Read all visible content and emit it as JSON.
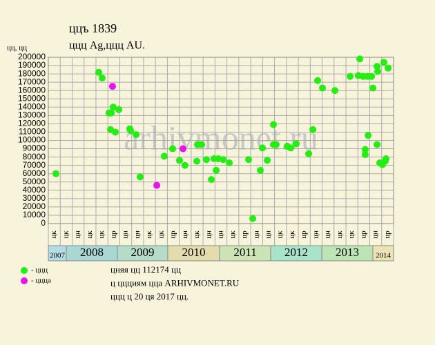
{
  "chart_data": {
    "type": "scatter",
    "title": "ццъ 1839",
    "subtitle": "ццц Ag,ццц AU.",
    "y_label": "цц, цц",
    "watermark": "arhivmonet.ru",
    "notes": [
      "цняя цц 112174 цц",
      "ц ццциям цца ARHIVMONET.RU",
      "ццц ц 20 ця 2017 цц."
    ],
    "xlim": [
      0,
      29
    ],
    "ylim": [
      0,
      200000
    ],
    "yticks": [
      0,
      10000,
      20000,
      30000,
      40000,
      50000,
      60000,
      70000,
      80000,
      90000,
      100000,
      110000,
      120000,
      130000,
      140000,
      150000,
      160000,
      170000,
      180000,
      190000,
      200000
    ],
    "grid": true,
    "categories": [
      "цк",
      "цк",
      "цн",
      "цк",
      "цк",
      "цр",
      "цн",
      "цн",
      "цк",
      "цк",
      "цр",
      "цн",
      "цк",
      "цн",
      "цн",
      "цк",
      "цр",
      "цн",
      "цн",
      "цк",
      "цк",
      "цр",
      "цн",
      "цн",
      "цк",
      "цк",
      "цр",
      "цн",
      "цр"
    ],
    "year_bands": [
      {
        "label": "2007",
        "from": 0,
        "to": 1.51,
        "color": "#b4dce4"
      },
      {
        "label": "2008",
        "from": 1.51,
        "to": 5.8,
        "color": "#a8d8d4"
      },
      {
        "label": "2009",
        "from": 5.8,
        "to": 10.03,
        "color": "#b4dcc8"
      },
      {
        "label": "2010",
        "from": 10.03,
        "to": 14.39,
        "color": "#e4dcac"
      },
      {
        "label": "2011",
        "from": 14.39,
        "to": 18.68,
        "color": "#cce4b4"
      },
      {
        "label": "2012",
        "from": 18.68,
        "to": 22.97,
        "color": "#a8e4cc"
      },
      {
        "label": "2013",
        "from": 22.97,
        "to": 27.26,
        "color": "#bce4b4"
      },
      {
        "label": "2014",
        "from": 27.26,
        "to": 29,
        "color": "#ece4b4"
      }
    ],
    "series": [
      {
        "name": "- ццц",
        "color": "#22ee11",
        "x": [
          0.64,
          4.23,
          4.52,
          5.1,
          5.28,
          5.22,
          5.45,
          5.63,
          5.92,
          6.84,
          6.9,
          7.37,
          7.71,
          9.74,
          10.44,
          11.02,
          11.48,
          12.47,
          12.53,
          12.88,
          13.28,
          13.69,
          13.92,
          14.1,
          14.27,
          14.68,
          15.2,
          16.82,
          17.17,
          17.81,
          17.98,
          18.39,
          18.91,
          18.91,
          19.14,
          20.07,
          20.36,
          20.82,
          21.87,
          22.22,
          22.62,
          23.03,
          24.07,
          25.35,
          26.04,
          26.16,
          26.45,
          26.8,
          27.15,
          27.26,
          26.62,
          26.62,
          26.86,
          27.61,
          27.67,
          27.61,
          27.84,
          28.07,
          28.19,
          28.36,
          28.3,
          28.54
        ],
        "values": [
          60000,
          182000,
          175000,
          133000,
          133000,
          113000,
          140000,
          110000,
          137000,
          114000,
          112000,
          107000,
          56000,
          81000,
          90000,
          76000,
          70000,
          75000,
          95000,
          95000,
          77000,
          53000,
          78000,
          64000,
          78000,
          77000,
          73000,
          77000,
          6000,
          64000,
          91000,
          76000,
          119000,
          95000,
          95000,
          93000,
          91000,
          96000,
          84000,
          113000,
          172000,
          163000,
          160000,
          177000,
          178000,
          198000,
          177000,
          177000,
          177000,
          163000,
          89000,
          83000,
          106000,
          189000,
          183000,
          95000,
          73000,
          71000,
          194000,
          78000,
          75000,
          187000
        ]
      },
      {
        "name": "- ццца",
        "color": "#ee11ee",
        "x": [
          5.39,
          11.31,
          9.11
        ],
        "values": [
          165000,
          90000,
          46000
        ]
      }
    ]
  }
}
